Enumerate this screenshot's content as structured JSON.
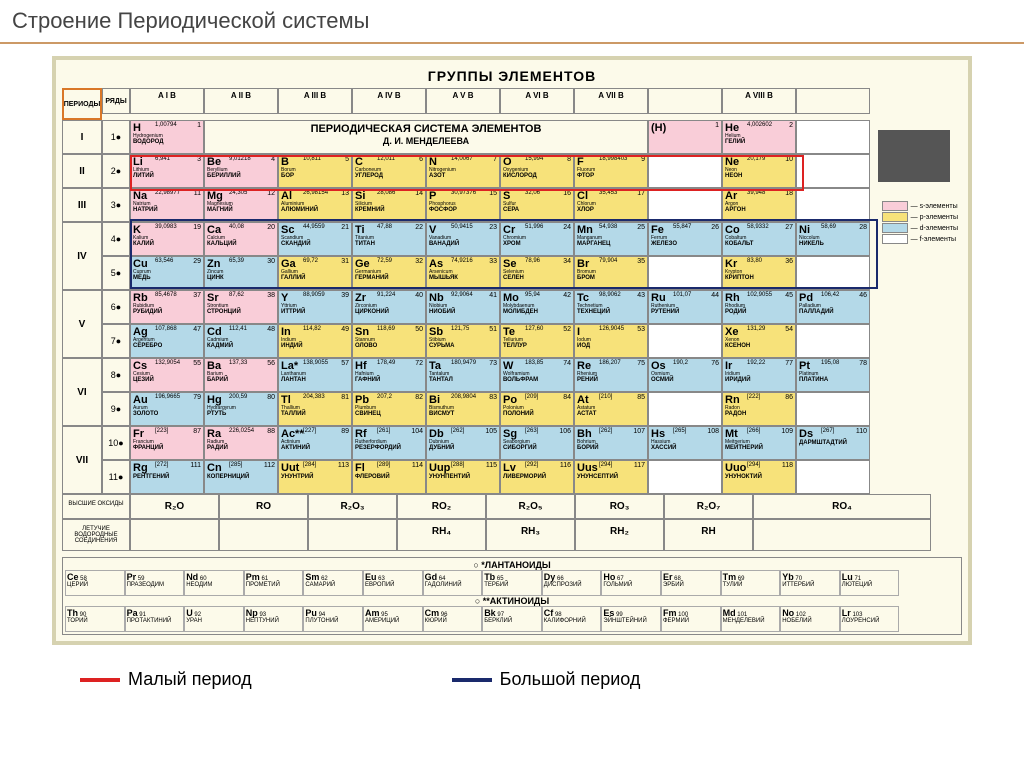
{
  "header": {
    "title": "Строение Периодической системы"
  },
  "top_title": "ГРУППЫ  ЭЛЕМЕНТОВ",
  "periods_label": "ПЕРИОДЫ",
  "ryady_label": "РЯДЫ",
  "main_title_line1": "ПЕРИОДИЧЕСКАЯ СИСТЕМА ЭЛЕМЕНТОВ",
  "main_title_line2": "Д. И. МЕНДЕЛЕЕВА",
  "groups": [
    "A I B",
    "A II B",
    "A III B",
    "A IV B",
    "A V B",
    "A VI B",
    "A VII B",
    "",
    "A VIII B",
    ""
  ],
  "periods": [
    "I",
    "II",
    "III",
    "IV",
    "IV",
    "V",
    "V",
    "VI",
    "VI",
    "VII",
    "VII"
  ],
  "ryady": [
    "1",
    "2",
    "3",
    "4",
    "5",
    "6",
    "7",
    "8",
    "9",
    "10",
    "11"
  ],
  "colors": {
    "s": "#f9cdd8",
    "p": "#f7e27a",
    "d": "#b4d9e8",
    "f": "#ffffff",
    "border": "#888",
    "bg": "#fcfaea",
    "red": "#d22",
    "blue": "#1a2a6c"
  },
  "legend_items": [
    {
      "color": "#f9cdd8",
      "label": "— s-элементы"
    },
    {
      "color": "#f7e27a",
      "label": "— p-элементы"
    },
    {
      "color": "#b4d9e8",
      "label": "— d-элементы"
    },
    {
      "color": "#ffffff",
      "label": "— f-элементы"
    }
  ],
  "rows": [
    [
      {
        "n": 1,
        "s": "H",
        "m": "1,00794",
        "lat": "Hydrogenium",
        "rus": "ВОДОРОД",
        "c": "s"
      },
      null,
      null,
      null,
      null,
      null,
      null,
      {
        "n": 1,
        "s": "(H)",
        "m": "",
        "lat": "",
        "rus": "",
        "c": "s"
      },
      {
        "n": 2,
        "s": "He",
        "m": "4,002602",
        "lat": "Helium",
        "rus": "ГЕЛИЙ",
        "c": "s"
      },
      null
    ],
    [
      {
        "n": 3,
        "s": "Li",
        "m": "6,941",
        "lat": "Lithium",
        "rus": "ЛИТИЙ",
        "c": "s"
      },
      {
        "n": 4,
        "s": "Be",
        "m": "9,01218",
        "lat": "Beryllium",
        "rus": "БЕРИЛЛИЙ",
        "c": "s"
      },
      {
        "n": 5,
        "s": "B",
        "m": "10,811",
        "lat": "Borum",
        "rus": "БОР",
        "c": "p"
      },
      {
        "n": 6,
        "s": "C",
        "m": "12,011",
        "lat": "Carboneum",
        "rus": "УГЛЕРОД",
        "c": "p"
      },
      {
        "n": 7,
        "s": "N",
        "m": "14,0067",
        "lat": "Nitrogenium",
        "rus": "АЗОТ",
        "c": "p"
      },
      {
        "n": 8,
        "s": "O",
        "m": "15,994",
        "lat": "Oxygenium",
        "rus": "КИСЛОРОД",
        "c": "p"
      },
      {
        "n": 9,
        "s": "F",
        "m": "18,998403",
        "lat": "Fluorum",
        "rus": "ФТОР",
        "c": "p"
      },
      null,
      {
        "n": 10,
        "s": "Ne",
        "m": "20,179",
        "lat": "Neon",
        "rus": "НЕОН",
        "c": "p"
      },
      null
    ],
    [
      {
        "n": 11,
        "s": "Na",
        "m": "22,98977",
        "lat": "Natrium",
        "rus": "НАТРИЙ",
        "c": "s"
      },
      {
        "n": 12,
        "s": "Mg",
        "m": "24,305",
        "lat": "Magnesium",
        "rus": "МАГНИЙ",
        "c": "s"
      },
      {
        "n": 13,
        "s": "Al",
        "m": "26,98154",
        "lat": "Aluminium",
        "rus": "АЛЮМИНИЙ",
        "c": "p"
      },
      {
        "n": 14,
        "s": "Si",
        "m": "28,086",
        "lat": "Silicium",
        "rus": "КРЕМНИЙ",
        "c": "p"
      },
      {
        "n": 15,
        "s": "P",
        "m": "30,97376",
        "lat": "Phosphorus",
        "rus": "ФОСФОР",
        "c": "p"
      },
      {
        "n": 16,
        "s": "S",
        "m": "32,06",
        "lat": "Sulfur",
        "rus": "СЕРА",
        "c": "p"
      },
      {
        "n": 17,
        "s": "Cl",
        "m": "35,453",
        "lat": "Chlorum",
        "rus": "ХЛОР",
        "c": "p"
      },
      null,
      {
        "n": 18,
        "s": "Ar",
        "m": "39,948",
        "lat": "Argon",
        "rus": "АРГОН",
        "c": "p"
      },
      null
    ],
    [
      {
        "n": 19,
        "s": "K",
        "m": "39,0983",
        "lat": "Kalium",
        "rus": "КАЛИЙ",
        "c": "s"
      },
      {
        "n": 20,
        "s": "Ca",
        "m": "40,08",
        "lat": "Calcium",
        "rus": "КАЛЬЦИЙ",
        "c": "s"
      },
      {
        "n": 21,
        "s": "Sc",
        "m": "44,9559",
        "lat": "Scandium",
        "rus": "СКАНДИЙ",
        "c": "d"
      },
      {
        "n": 22,
        "s": "Ti",
        "m": "47,88",
        "lat": "Titanium",
        "rus": "ТИТАН",
        "c": "d"
      },
      {
        "n": 23,
        "s": "V",
        "m": "50,9415",
        "lat": "Vanadium",
        "rus": "ВАНАДИЙ",
        "c": "d"
      },
      {
        "n": 24,
        "s": "Cr",
        "m": "51,996",
        "lat": "Chromium",
        "rus": "ХРОМ",
        "c": "d"
      },
      {
        "n": 25,
        "s": "Mn",
        "m": "54,938",
        "lat": "Manganum",
        "rus": "МАРГАНЕЦ",
        "c": "d"
      },
      {
        "n": 26,
        "s": "Fe",
        "m": "55,847",
        "lat": "Ferrum",
        "rus": "ЖЕЛЕЗО",
        "c": "d"
      },
      {
        "n": 27,
        "s": "Co",
        "m": "58,9332",
        "lat": "Cobaltum",
        "rus": "КОБАЛЬТ",
        "c": "d"
      },
      {
        "n": 28,
        "s": "Ni",
        "m": "58,69",
        "lat": "Niccolum",
        "rus": "НИКЕЛЬ",
        "c": "d"
      }
    ],
    [
      {
        "n": 29,
        "s": "Cu",
        "m": "63,546",
        "lat": "Cuprum",
        "rus": "МЕДЬ",
        "c": "d"
      },
      {
        "n": 30,
        "s": "Zn",
        "m": "65,39",
        "lat": "Zincum",
        "rus": "ЦИНК",
        "c": "d"
      },
      {
        "n": 31,
        "s": "Ga",
        "m": "69,72",
        "lat": "Gallium",
        "rus": "ГАЛЛИЙ",
        "c": "p"
      },
      {
        "n": 32,
        "s": "Ge",
        "m": "72,59",
        "lat": "Germanium",
        "rus": "ГЕРМАНИЙ",
        "c": "p"
      },
      {
        "n": 33,
        "s": "As",
        "m": "74,9216",
        "lat": "Arsenicum",
        "rus": "МЫШЬЯК",
        "c": "p"
      },
      {
        "n": 34,
        "s": "Se",
        "m": "78,96",
        "lat": "Selenium",
        "rus": "СЕЛЕН",
        "c": "p"
      },
      {
        "n": 35,
        "s": "Br",
        "m": "79,904",
        "lat": "Bromum",
        "rus": "БРОМ",
        "c": "p"
      },
      null,
      {
        "n": 36,
        "s": "Kr",
        "m": "83,80",
        "lat": "Krypton",
        "rus": "КРИПТОН",
        "c": "p"
      },
      null
    ],
    [
      {
        "n": 37,
        "s": "Rb",
        "m": "85,4678",
        "lat": "Rubidium",
        "rus": "РУБИДИЙ",
        "c": "s"
      },
      {
        "n": 38,
        "s": "Sr",
        "m": "87,62",
        "lat": "Strontium",
        "rus": "СТРОНЦИЙ",
        "c": "s"
      },
      {
        "n": 39,
        "s": "Y",
        "m": "88,9059",
        "lat": "Yttrium",
        "rus": "ИТТРИЙ",
        "c": "d"
      },
      {
        "n": 40,
        "s": "Zr",
        "m": "91,224",
        "lat": "Zirconium",
        "rus": "ЦИРКОНИЙ",
        "c": "d"
      },
      {
        "n": 41,
        "s": "Nb",
        "m": "92,9064",
        "lat": "Niobium",
        "rus": "НИОБИЙ",
        "c": "d"
      },
      {
        "n": 42,
        "s": "Mo",
        "m": "95,94",
        "lat": "Molybdaenum",
        "rus": "МОЛИБДЕН",
        "c": "d"
      },
      {
        "n": 43,
        "s": "Tc",
        "m": "98,9062",
        "lat": "Technetium",
        "rus": "ТЕХНЕЦИЙ",
        "c": "d"
      },
      {
        "n": 44,
        "s": "Ru",
        "m": "101,07",
        "lat": "Ruthenium",
        "rus": "РУТЕНИЙ",
        "c": "d"
      },
      {
        "n": 45,
        "s": "Rh",
        "m": "102,9055",
        "lat": "Rhodium",
        "rus": "РОДИЙ",
        "c": "d"
      },
      {
        "n": 46,
        "s": "Pd",
        "m": "106,42",
        "lat": "Palladium",
        "rus": "ПАЛЛАДИЙ",
        "c": "d"
      }
    ],
    [
      {
        "n": 47,
        "s": "Ag",
        "m": "107,868",
        "lat": "Argentum",
        "rus": "СЕРЕБРО",
        "c": "d"
      },
      {
        "n": 48,
        "s": "Cd",
        "m": "112,41",
        "lat": "Cadmium",
        "rus": "КАДМИЙ",
        "c": "d"
      },
      {
        "n": 49,
        "s": "In",
        "m": "114,82",
        "lat": "Indium",
        "rus": "ИНДИЙ",
        "c": "p"
      },
      {
        "n": 50,
        "s": "Sn",
        "m": "118,69",
        "lat": "Stannum",
        "rus": "ОЛОВО",
        "c": "p"
      },
      {
        "n": 51,
        "s": "Sb",
        "m": "121,75",
        "lat": "Stibium",
        "rus": "СУРЬМА",
        "c": "p"
      },
      {
        "n": 52,
        "s": "Te",
        "m": "127,60",
        "lat": "Tellurium",
        "rus": "ТЕЛЛУР",
        "c": "p"
      },
      {
        "n": 53,
        "s": "I",
        "m": "126,9045",
        "lat": "Iodum",
        "rus": "ИОД",
        "c": "p"
      },
      null,
      {
        "n": 54,
        "s": "Xe",
        "m": "131,29",
        "lat": "Xenon",
        "rus": "КСЕНОН",
        "c": "p"
      },
      null
    ],
    [
      {
        "n": 55,
        "s": "Cs",
        "m": "132,9054",
        "lat": "Cesium",
        "rus": "ЦЕЗИЙ",
        "c": "s"
      },
      {
        "n": 56,
        "s": "Ba",
        "m": "137,33",
        "lat": "Barium",
        "rus": "БАРИЙ",
        "c": "s"
      },
      {
        "n": 57,
        "s": "La*",
        "m": "138,9055",
        "lat": "Lanthanum",
        "rus": "ЛАНТАН",
        "c": "d"
      },
      {
        "n": 72,
        "s": "Hf",
        "m": "178,49",
        "lat": "Hafnium",
        "rus": "ГАФНИЙ",
        "c": "d"
      },
      {
        "n": 73,
        "s": "Ta",
        "m": "180,9479",
        "lat": "Tantalum",
        "rus": "ТАНТАЛ",
        "c": "d"
      },
      {
        "n": 74,
        "s": "W",
        "m": "183,85",
        "lat": "Wolframium",
        "rus": "ВОЛЬФРАМ",
        "c": "d"
      },
      {
        "n": 75,
        "s": "Re",
        "m": "186,207",
        "lat": "Rhenium",
        "rus": "РЕНИЙ",
        "c": "d"
      },
      {
        "n": 76,
        "s": "Os",
        "m": "190,2",
        "lat": "Osmium",
        "rus": "ОСМИЙ",
        "c": "d"
      },
      {
        "n": 77,
        "s": "Ir",
        "m": "192,22",
        "lat": "Iridium",
        "rus": "ИРИДИЙ",
        "c": "d"
      },
      {
        "n": 78,
        "s": "Pt",
        "m": "195,08",
        "lat": "Platinum",
        "rus": "ПЛАТИНА",
        "c": "d"
      }
    ],
    [
      {
        "n": 79,
        "s": "Au",
        "m": "196,9665",
        "lat": "Aurum",
        "rus": "ЗОЛОТО",
        "c": "d"
      },
      {
        "n": 80,
        "s": "Hg",
        "m": "200,59",
        "lat": "Hydrargyrum",
        "rus": "РТУТЬ",
        "c": "d"
      },
      {
        "n": 81,
        "s": "Tl",
        "m": "204,383",
        "lat": "Thallium",
        "rus": "ТАЛЛИЙ",
        "c": "p"
      },
      {
        "n": 82,
        "s": "Pb",
        "m": "207,2",
        "lat": "Plumbum",
        "rus": "СВИНЕЦ",
        "c": "p"
      },
      {
        "n": 83,
        "s": "Bi",
        "m": "208,9804",
        "lat": "Bismuthum",
        "rus": "ВИСМУТ",
        "c": "p"
      },
      {
        "n": 84,
        "s": "Po",
        "m": "[209]",
        "lat": "Polonium",
        "rus": "ПОЛОНИЙ",
        "c": "p"
      },
      {
        "n": 85,
        "s": "At",
        "m": "[210]",
        "lat": "Astatum",
        "rus": "АСТАТ",
        "c": "p"
      },
      null,
      {
        "n": 86,
        "s": "Rn",
        "m": "[222]",
        "lat": "Radon",
        "rus": "РАДОН",
        "c": "p"
      },
      null
    ],
    [
      {
        "n": 87,
        "s": "Fr",
        "m": "[223]",
        "lat": "Francium",
        "rus": "ФРАНЦИЙ",
        "c": "s"
      },
      {
        "n": 88,
        "s": "Ra",
        "m": "226,0254",
        "lat": "Radium",
        "rus": "РАДИЙ",
        "c": "s"
      },
      {
        "n": 89,
        "s": "Ac**",
        "m": "[227]",
        "lat": "Actinium",
        "rus": "АКТИНИЙ",
        "c": "d"
      },
      {
        "n": 104,
        "s": "Rf",
        "m": "[261]",
        "lat": "Rutherfordium",
        "rus": "РЕЗЕРФОРДИЙ",
        "c": "d"
      },
      {
        "n": 105,
        "s": "Db",
        "m": "[262]",
        "lat": "Dubnium",
        "rus": "ДУБНИЙ",
        "c": "d"
      },
      {
        "n": 106,
        "s": "Sg",
        "m": "[263]",
        "lat": "Seaborgium",
        "rus": "СИБОРГИЙ",
        "c": "d"
      },
      {
        "n": 107,
        "s": "Bh",
        "m": "[262]",
        "lat": "Bohrium",
        "rus": "БОРИЙ",
        "c": "d"
      },
      {
        "n": 108,
        "s": "Hs",
        "m": "[265]",
        "lat": "Hassium",
        "rus": "ХАССИЙ",
        "c": "d"
      },
      {
        "n": 109,
        "s": "Mt",
        "m": "[266]",
        "lat": "Meitnerium",
        "rus": "МЕЙТНЕРИЙ",
        "c": "d"
      },
      {
        "n": 110,
        "s": "Ds",
        "m": "[267]",
        "lat": "",
        "rus": "ДАРМШТАДТИЙ",
        "c": "d"
      }
    ],
    [
      {
        "n": 111,
        "s": "Rg",
        "m": "[272]",
        "lat": "",
        "rus": "РЕНТГЕНИЙ",
        "c": "d"
      },
      {
        "n": 112,
        "s": "Cn",
        "m": "[285]",
        "lat": "",
        "rus": "КОПЕРНИЦИЙ",
        "c": "d"
      },
      {
        "n": 113,
        "s": "Uut",
        "m": "[284]",
        "lat": "",
        "rus": "УНУНТРИЙ",
        "c": "p"
      },
      {
        "n": 114,
        "s": "Fl",
        "m": "[289]",
        "lat": "",
        "rus": "ФЛЕРОВИЙ",
        "c": "p"
      },
      {
        "n": 115,
        "s": "Uup",
        "m": "[288]",
        "lat": "",
        "rus": "УНУНПЕНТИЙ",
        "c": "p"
      },
      {
        "n": 116,
        "s": "Lv",
        "m": "[292]",
        "lat": "",
        "rus": "ЛИВЕРМОРИЙ",
        "c": "p"
      },
      {
        "n": 117,
        "s": "Uus",
        "m": "[294]",
        "lat": "",
        "rus": "УНУНСЕПТИЙ",
        "c": "p"
      },
      null,
      {
        "n": 118,
        "s": "Uuo",
        "m": "[294]",
        "lat": "",
        "rus": "УНУНОКТИЙ",
        "c": "p"
      },
      null
    ]
  ],
  "oxides": {
    "label": "ВЫСШИЕ ОКСИДЫ",
    "values": [
      "R₂O",
      "RO",
      "R₂O₃",
      "RO₂",
      "R₂O₅",
      "RO₃",
      "R₂O₇",
      "RO₄"
    ]
  },
  "hydrides": {
    "label": "ЛЕТУЧИЕ ВОДОРОДНЫЕ СОЕДИНЕНИЯ",
    "values": [
      "",
      "",
      "",
      "RH₄",
      "RH₃",
      "RH₂",
      "RH",
      ""
    ]
  },
  "lanthanides": {
    "title": "○ *ЛАНТАНОИДЫ",
    "items": [
      {
        "n": 58,
        "s": "Ce",
        "r": "ЦЕРИЙ"
      },
      {
        "n": 59,
        "s": "Pr",
        "r": "ПРАЗЕОДИМ"
      },
      {
        "n": 60,
        "s": "Nd",
        "r": "НЕОДИМ"
      },
      {
        "n": 61,
        "s": "Pm",
        "r": "ПРОМЕТИЙ"
      },
      {
        "n": 62,
        "s": "Sm",
        "r": "САМАРИЙ"
      },
      {
        "n": 63,
        "s": "Eu",
        "r": "ЕВРОПИЙ"
      },
      {
        "n": 64,
        "s": "Gd",
        "r": "ГАДОЛИНИЙ"
      },
      {
        "n": 65,
        "s": "Tb",
        "r": "ТЕРБИЙ"
      },
      {
        "n": 66,
        "s": "Dy",
        "r": "ДИСПРОЗИЙ"
      },
      {
        "n": 67,
        "s": "Ho",
        "r": "ГОЛЬМИЙ"
      },
      {
        "n": 68,
        "s": "Er",
        "r": "ЭРБИЙ"
      },
      {
        "n": 69,
        "s": "Tm",
        "r": "ТУЛИЙ"
      },
      {
        "n": 70,
        "s": "Yb",
        "r": "ИТТЕРБИЙ"
      },
      {
        "n": 71,
        "s": "Lu",
        "r": "ЛЮТЕЦИЙ"
      }
    ]
  },
  "actinides": {
    "title": "○ **АКТИНОИДЫ",
    "items": [
      {
        "n": 90,
        "s": "Th",
        "r": "ТОРИЙ"
      },
      {
        "n": 91,
        "s": "Pa",
        "r": "ПРОТАКТИНИЙ"
      },
      {
        "n": 92,
        "s": "U",
        "r": "УРАН"
      },
      {
        "n": 93,
        "s": "Np",
        "r": "НЕПТУНИЙ"
      },
      {
        "n": 94,
        "s": "Pu",
        "r": "ПЛУТОНИЙ"
      },
      {
        "n": 95,
        "s": "Am",
        "r": "АМЕРИЦИЙ"
      },
      {
        "n": 96,
        "s": "Cm",
        "r": "КЮРИЙ"
      },
      {
        "n": 97,
        "s": "Bk",
        "r": "БЕРКЛИЙ"
      },
      {
        "n": 98,
        "s": "Cf",
        "r": "КАЛИФОРНИЙ"
      },
      {
        "n": 99,
        "s": "Es",
        "r": "ЭЙНШТЕЙНИЙ"
      },
      {
        "n": 100,
        "s": "Fm",
        "r": "ФЕРМИЙ"
      },
      {
        "n": 101,
        "s": "Md",
        "r": "МЕНДЕЛЕВИЙ"
      },
      {
        "n": 102,
        "s": "No",
        "r": "НОБЕЛИЙ"
      },
      {
        "n": 103,
        "s": "Lr",
        "r": "ЛОУРЕНСИЙ"
      }
    ]
  },
  "bottom_legend": [
    {
      "color": "#d22",
      "label": "Малый период"
    },
    {
      "color": "#1a2a6c",
      "label": "Большой период"
    }
  ]
}
